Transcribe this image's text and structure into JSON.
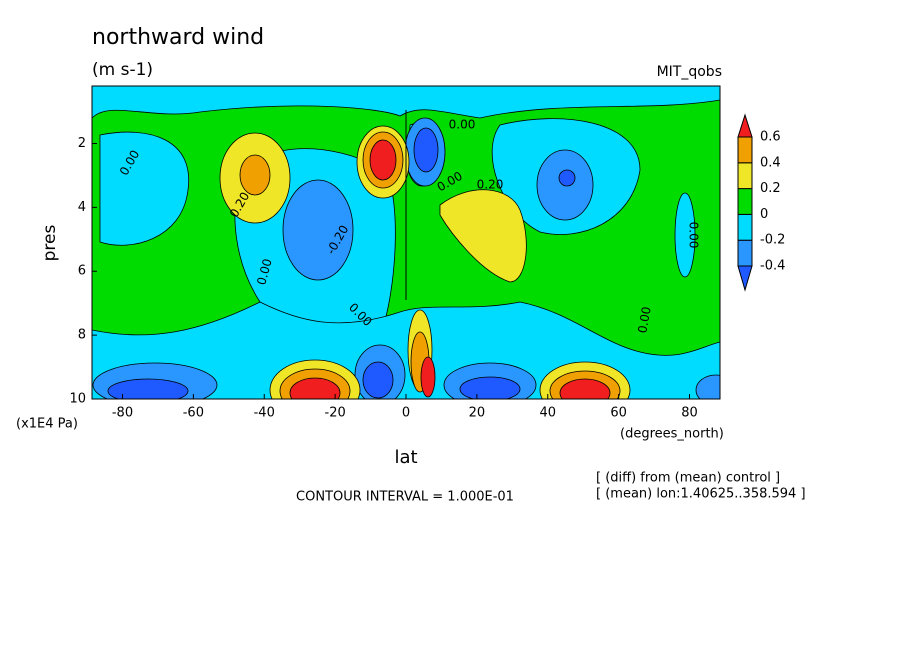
{
  "chart_data": {
    "type": "contour",
    "title": "northward wind",
    "subtitle": "(m s-1)",
    "dataset_label": "MIT_qobs",
    "x_label": "lat",
    "y_label": "pres",
    "x_unit": "(degrees_north)",
    "y_unit": "(x1E4 Pa)",
    "contour_interval": "CONTOUR INTERVAL = 1.000E-01",
    "notes": [
      "[ (diff) from (mean) control ]",
      "[ (mean) lon:1.40625..358.594 ]"
    ],
    "xlim": [
      -88.6,
      88.6
    ],
    "xticks": [
      -80,
      -60,
      -40,
      -20,
      0,
      20,
      40,
      60,
      80
    ],
    "ylim": [
      10,
      0.2
    ],
    "yticks": [
      2,
      4,
      6,
      8,
      10
    ],
    "levels": [
      -0.4,
      -0.2,
      0,
      0.2,
      0.4,
      0.6
    ],
    "colors": [
      "#1e5aff",
      "#2a96ff",
      "#00dcff",
      "#00dc00",
      "#f0e628",
      "#f0a000",
      "#f01e1e"
    ],
    "contour_labels": [
      {
        "value": 0,
        "label": "0.00"
      },
      {
        "value": 0,
        "label": "0.00"
      },
      {
        "value": 0.2,
        "label": "0.20"
      },
      {
        "value": 0,
        "label": "0.00"
      },
      {
        "value": 0.2,
        "label": "0.20"
      },
      {
        "value": -0.2,
        "label": "-0.20"
      },
      {
        "value": 0,
        "label": "0.00"
      },
      {
        "value": 0,
        "label": "0.00"
      },
      {
        "value": 0,
        "label": "0.00"
      },
      {
        "value": 0,
        "label": "0.00"
      }
    ]
  }
}
